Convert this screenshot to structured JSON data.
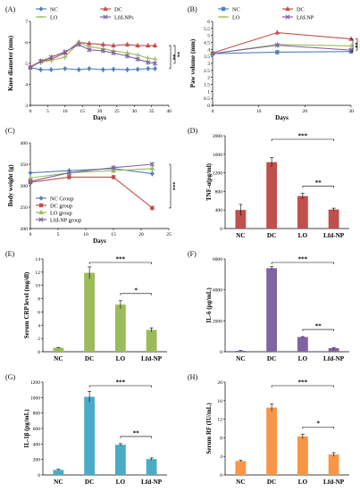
{
  "chart_data": [
    {
      "panel": "(A)",
      "type": "line",
      "xlabel": "Days",
      "ylabel": "Knee diameter (mm)",
      "xlim": [
        0,
        40
      ],
      "ylim": [
        3,
        7
      ],
      "xticks": [
        "0",
        "5",
        "10",
        "15",
        "20",
        "25",
        "30",
        "35",
        "40"
      ],
      "yticks": [
        "3",
        "4",
        "5",
        "6",
        "7"
      ],
      "x": [
        0,
        3,
        6,
        10,
        14,
        17,
        21,
        24,
        28,
        31,
        34,
        36
      ],
      "series": [
        {
          "name": "NC",
          "color": "#4f81bd",
          "marker": "diamond",
          "values": [
            4.8,
            4.7,
            4.7,
            4.75,
            4.7,
            4.75,
            4.7,
            4.72,
            4.7,
            4.72,
            4.75,
            4.75
          ]
        },
        {
          "name": "DC",
          "color": "#c0504d",
          "marker": "triangle",
          "values": [
            4.85,
            5.1,
            5.2,
            5.5,
            6.0,
            5.95,
            5.9,
            5.85,
            5.9,
            5.85,
            5.85,
            5.85
          ]
        },
        {
          "name": "LO",
          "color": "#9bbb59",
          "marker": "line",
          "values": [
            4.85,
            5.05,
            5.15,
            5.3,
            6.0,
            5.8,
            5.7,
            5.6,
            5.5,
            5.4,
            5.25,
            5.2
          ]
        },
        {
          "name": "Lfd-NPs",
          "color": "#8064a2",
          "marker": "x",
          "values": [
            4.8,
            5.1,
            5.3,
            5.55,
            5.9,
            5.65,
            5.6,
            5.5,
            5.35,
            5.2,
            5.05,
            5.0
          ]
        }
      ],
      "significance": [
        "**",
        "**"
      ]
    },
    {
      "panel": "(B)",
      "type": "line",
      "xlabel": "Days",
      "ylabel": "Paw volume (mm)",
      "xlim": [
        0,
        30
      ],
      "ylim": [
        0,
        6
      ],
      "xticks": [
        "0",
        "10",
        "20",
        "30"
      ],
      "yticks": [
        "0",
        "0.5",
        "1",
        "1.5",
        "2",
        "2.5",
        "3",
        "3.5",
        "4",
        "4.5",
        "5",
        "5.5",
        "6"
      ],
      "x": [
        0,
        14,
        30
      ],
      "series": [
        {
          "name": "NC",
          "color": "#4f81bd",
          "marker": "square",
          "values": [
            3.7,
            3.8,
            3.85
          ]
        },
        {
          "name": "DC",
          "color": "#c0504d",
          "marker": "triangle",
          "values": [
            3.75,
            5.2,
            4.75
          ]
        },
        {
          "name": "LO",
          "color": "#9bbb59",
          "marker": "line",
          "values": [
            3.7,
            4.35,
            4.25
          ]
        },
        {
          "name": "Lfd-NP",
          "color": "#8064a2",
          "marker": "x",
          "values": [
            3.7,
            4.3,
            3.95
          ]
        }
      ],
      "significance": [
        "**",
        "***"
      ]
    },
    {
      "panel": "(C)",
      "type": "line",
      "xlabel": "Days",
      "ylabel": "Body weight (g)",
      "xlim": [
        0,
        25
      ],
      "ylim": [
        200,
        400
      ],
      "xticks": [
        "0",
        "5",
        "10",
        "15",
        "20",
        "25"
      ],
      "yticks": [
        "200",
        "250",
        "300",
        "350",
        "400"
      ],
      "x": [
        0,
        7,
        15,
        22
      ],
      "series": [
        {
          "name": "NC Group",
          "color": "#4f81bd",
          "marker": "diamond",
          "values": [
            330,
            335,
            340,
            328
          ]
        },
        {
          "name": "DC group",
          "color": "#c0504d",
          "marker": "square",
          "values": [
            308,
            320,
            320,
            248
          ]
        },
        {
          "name": "LO group",
          "color": "#9bbb59",
          "marker": "triangle",
          "values": [
            318,
            330,
            335,
            340
          ]
        },
        {
          "name": "Lfd-NP group",
          "color": "#8064a2",
          "marker": "x",
          "values": [
            310,
            330,
            342,
            350
          ]
        }
      ],
      "significance": [
        "***"
      ]
    },
    {
      "panel": "(D)",
      "type": "bar",
      "ylabel": "TNF-α(pg/ml)",
      "ylim": [
        0,
        2000
      ],
      "yticks": [
        "0",
        "400",
        "800",
        "1200",
        "1600",
        "2000"
      ],
      "categories": [
        "NC",
        "DC",
        "LO",
        "Lfd-NP"
      ],
      "values": [
        400,
        1430,
        700,
        410
      ],
      "errors": [
        120,
        100,
        60,
        30
      ],
      "color": "#c0504d",
      "significance": [
        "***",
        "**"
      ]
    },
    {
      "panel": "(E)",
      "type": "bar",
      "ylabel": "Serum CRP level (mg/dl)",
      "ylim": [
        0,
        14
      ],
      "yticks": [
        "0",
        "2",
        "4",
        "6",
        "8",
        "10",
        "12",
        "14"
      ],
      "categories": [
        "NC",
        "DC",
        "LO",
        "Lfd-NP"
      ],
      "values": [
        0.6,
        11.9,
        7.1,
        3.3
      ],
      "errors": [
        0.05,
        0.9,
        0.6,
        0.3
      ],
      "color": "#9bbb59",
      "significance": [
        "***",
        "*"
      ]
    },
    {
      "panel": "(F)",
      "type": "bar",
      "ylabel": "IL-6 (pg/mL)",
      "ylim": [
        0,
        6000
      ],
      "yticks": [
        "0",
        "2000",
        "4000",
        "6000"
      ],
      "categories": [
        "NC",
        "DC",
        "LO",
        "Lfd-NP"
      ],
      "values": [
        60,
        5400,
        950,
        230
      ],
      "errors": [
        15,
        100,
        30,
        40
      ],
      "color": "#8064a2",
      "significance": [
        "***",
        "**"
      ]
    },
    {
      "panel": "(G)",
      "type": "bar",
      "ylabel": "IL-1β (pg/mL)",
      "ylim": [
        0,
        1200
      ],
      "yticks": [
        "0",
        "200",
        "400",
        "600",
        "800",
        "1000",
        "1200"
      ],
      "categories": [
        "NC",
        "DC",
        "LO",
        "Lfd-NP"
      ],
      "values": [
        65,
        1010,
        390,
        205
      ],
      "errors": [
        8,
        70,
        15,
        15
      ],
      "color": "#4bacc6",
      "significance": [
        "***",
        "**"
      ]
    },
    {
      "panel": "(H)",
      "type": "bar",
      "ylabel": "Serum RF (IU/mL)",
      "ylim": [
        0,
        20
      ],
      "yticks": [
        "0",
        "4",
        "8",
        "12",
        "16",
        "20"
      ],
      "categories": [
        "NC",
        "DC",
        "LO",
        "Lfd-NP"
      ],
      "values": [
        3.0,
        14.5,
        8.3,
        4.4
      ],
      "errors": [
        0.15,
        0.8,
        0.5,
        0.4
      ],
      "color": "#f79646",
      "significance": [
        "***",
        "*"
      ]
    }
  ]
}
